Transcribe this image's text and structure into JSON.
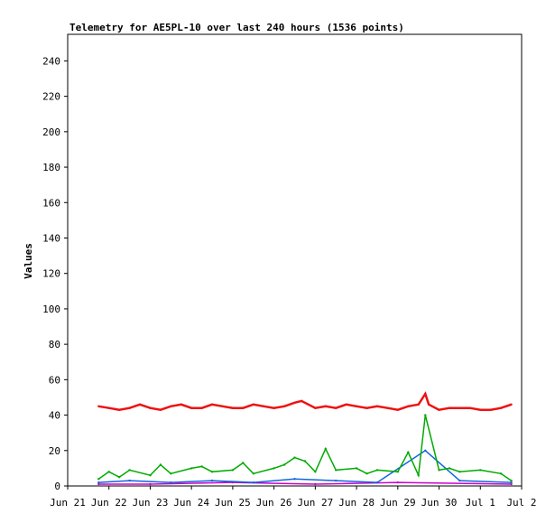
{
  "chart_data": {
    "type": "line",
    "title": "Telemetry for AE5PL-10 over last 240 hours (1536 points)",
    "xlabel": "",
    "ylabel": "Values",
    "ylim": [
      0,
      255
    ],
    "xlim": [
      "2024-06-21 00:00",
      "2024-07-02 00:00"
    ],
    "yticks": [
      0,
      20,
      40,
      60,
      80,
      100,
      120,
      140,
      160,
      180,
      200,
      220,
      240
    ],
    "xticks": [
      {
        "date": "2024-06-21",
        "label": "Jun 21"
      },
      {
        "date": "2024-06-22",
        "label": "Jun 22"
      },
      {
        "date": "2024-06-23",
        "label": "Jun 23"
      },
      {
        "date": "2024-06-24",
        "label": "Jun 24"
      },
      {
        "date": "2024-06-25",
        "label": "Jun 25"
      },
      {
        "date": "2024-06-26",
        "label": "Jun 26"
      },
      {
        "date": "2024-06-27",
        "label": "Jun 27"
      },
      {
        "date": "2024-06-28",
        "label": "Jun 28"
      },
      {
        "date": "2024-06-29",
        "label": "Jun 29"
      },
      {
        "date": "2024-06-30",
        "label": "Jun 30"
      },
      {
        "date": "2024-07-01",
        "label": "Jul 1"
      },
      {
        "date": "2024-07-02",
        "label": "Jul 2"
      }
    ],
    "grid": false,
    "legend": "none",
    "series": [
      {
        "color": "#ee1111",
        "points": [
          [
            "2024-06-21 18:00",
            45
          ],
          [
            "2024-06-22 00:00",
            44
          ],
          [
            "2024-06-22 06:00",
            43
          ],
          [
            "2024-06-22 12:00",
            44
          ],
          [
            "2024-06-22 18:00",
            46
          ],
          [
            "2024-06-23 00:00",
            44
          ],
          [
            "2024-06-23 06:00",
            43
          ],
          [
            "2024-06-23 12:00",
            45
          ],
          [
            "2024-06-23 18:00",
            46
          ],
          [
            "2024-06-24 00:00",
            44
          ],
          [
            "2024-06-24 06:00",
            44
          ],
          [
            "2024-06-24 12:00",
            46
          ],
          [
            "2024-06-24 18:00",
            45
          ],
          [
            "2024-06-25 00:00",
            44
          ],
          [
            "2024-06-25 06:00",
            44
          ],
          [
            "2024-06-25 12:00",
            46
          ],
          [
            "2024-06-25 18:00",
            45
          ],
          [
            "2024-06-26 00:00",
            44
          ],
          [
            "2024-06-26 06:00",
            45
          ],
          [
            "2024-06-26 12:00",
            47
          ],
          [
            "2024-06-26 16:00",
            48
          ],
          [
            "2024-06-27 00:00",
            44
          ],
          [
            "2024-06-27 06:00",
            45
          ],
          [
            "2024-06-27 12:00",
            44
          ],
          [
            "2024-06-27 18:00",
            46
          ],
          [
            "2024-06-28 00:00",
            45
          ],
          [
            "2024-06-28 06:00",
            44
          ],
          [
            "2024-06-28 12:00",
            45
          ],
          [
            "2024-06-28 18:00",
            44
          ],
          [
            "2024-06-29 00:00",
            43
          ],
          [
            "2024-06-29 06:00",
            45
          ],
          [
            "2024-06-29 12:00",
            46
          ],
          [
            "2024-06-29 16:00",
            52
          ],
          [
            "2024-06-29 18:00",
            46
          ],
          [
            "2024-06-30 00:00",
            43
          ],
          [
            "2024-06-30 06:00",
            44
          ],
          [
            "2024-06-30 12:00",
            44
          ],
          [
            "2024-06-30 18:00",
            44
          ],
          [
            "2024-07-01 00:00",
            43
          ],
          [
            "2024-07-01 06:00",
            43
          ],
          [
            "2024-07-01 12:00",
            44
          ],
          [
            "2024-07-01 18:00",
            46
          ]
        ]
      },
      {
        "color": "#00aa00",
        "points": [
          [
            "2024-06-21 18:00",
            4
          ],
          [
            "2024-06-22 00:00",
            8
          ],
          [
            "2024-06-22 06:00",
            5
          ],
          [
            "2024-06-22 12:00",
            9
          ],
          [
            "2024-06-23 00:00",
            6
          ],
          [
            "2024-06-23 06:00",
            12
          ],
          [
            "2024-06-23 12:00",
            7
          ],
          [
            "2024-06-24 00:00",
            10
          ],
          [
            "2024-06-24 06:00",
            11
          ],
          [
            "2024-06-24 12:00",
            8
          ],
          [
            "2024-06-25 00:00",
            9
          ],
          [
            "2024-06-25 06:00",
            13
          ],
          [
            "2024-06-25 12:00",
            7
          ],
          [
            "2024-06-26 00:00",
            10
          ],
          [
            "2024-06-26 06:00",
            12
          ],
          [
            "2024-06-26 12:00",
            16
          ],
          [
            "2024-06-26 18:00",
            14
          ],
          [
            "2024-06-27 00:00",
            8
          ],
          [
            "2024-06-27 06:00",
            21
          ],
          [
            "2024-06-27 12:00",
            9
          ],
          [
            "2024-06-28 00:00",
            10
          ],
          [
            "2024-06-28 06:00",
            7
          ],
          [
            "2024-06-28 12:00",
            9
          ],
          [
            "2024-06-29 00:00",
            8
          ],
          [
            "2024-06-29 06:00",
            19
          ],
          [
            "2024-06-29 12:00",
            6
          ],
          [
            "2024-06-29 16:00",
            40
          ],
          [
            "2024-06-30 00:00",
            9
          ],
          [
            "2024-06-30 06:00",
            10
          ],
          [
            "2024-06-30 12:00",
            8
          ],
          [
            "2024-07-01 00:00",
            9
          ],
          [
            "2024-07-01 12:00",
            7
          ],
          [
            "2024-07-01 18:00",
            3
          ]
        ]
      },
      {
        "color": "#1166dd",
        "points": [
          [
            "2024-06-21 18:00",
            2
          ],
          [
            "2024-06-22 12:00",
            3
          ],
          [
            "2024-06-23 12:00",
            2
          ],
          [
            "2024-06-24 12:00",
            3
          ],
          [
            "2024-06-25 12:00",
            2
          ],
          [
            "2024-06-26 12:00",
            4
          ],
          [
            "2024-06-27 12:00",
            3
          ],
          [
            "2024-06-28 12:00",
            2
          ],
          [
            "2024-06-29 16:00",
            20
          ],
          [
            "2024-06-30 12:00",
            3
          ],
          [
            "2024-07-01 18:00",
            2
          ]
        ]
      },
      {
        "color": "#cc00cc",
        "points": [
          [
            "2024-06-21 18:00",
            1
          ],
          [
            "2024-06-23 00:00",
            1
          ],
          [
            "2024-06-25 00:00",
            2
          ],
          [
            "2024-06-27 00:00",
            1
          ],
          [
            "2024-06-29 00:00",
            2
          ],
          [
            "2024-07-01 18:00",
            1
          ]
        ]
      }
    ]
  }
}
